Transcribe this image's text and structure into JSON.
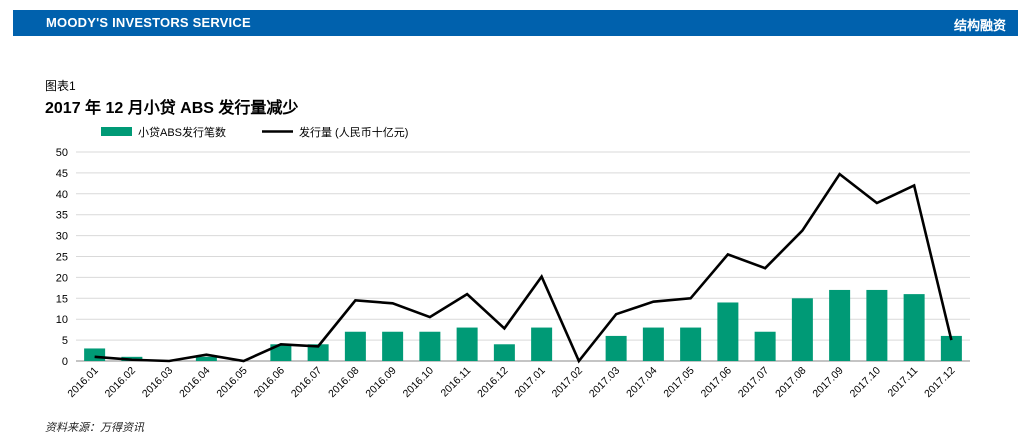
{
  "header": {
    "brand": "MOODY'S INVESTORS SERVICE",
    "section": "结构融资",
    "brand_color": "#0061ad"
  },
  "figure": {
    "label": "图表1",
    "title": "2017 年 12 月小贷 ABS 发行量减少",
    "source": "资料来源：万得资讯"
  },
  "chart_data": {
    "type": "bar",
    "title": "2017 年 12 月小贷 ABS 发行量减少",
    "categories": [
      "2016.01",
      "2016.02",
      "2016.03",
      "2016.04",
      "2016.05",
      "2016.06",
      "2016.07",
      "2016.08",
      "2016.09",
      "2016.10",
      "2016.11",
      "2016.12",
      "2017.01",
      "2017.02",
      "2017.03",
      "2017.04",
      "2017.05",
      "2017.06",
      "2017.07",
      "2017.08",
      "2017.09",
      "2017.10",
      "2017.11",
      "2017.12"
    ],
    "series": [
      {
        "name": "小贷ABS发行笔数",
        "kind": "bar",
        "color": "#009a76",
        "values": [
          3,
          1,
          0,
          1,
          0,
          4,
          4,
          7,
          7,
          7,
          8,
          4,
          8,
          0,
          6,
          8,
          8,
          14,
          7,
          15,
          17,
          17,
          16,
          6
        ]
      },
      {
        "name": "发行量 (人民币十亿元)",
        "kind": "line",
        "color": "#000000",
        "values": [
          1,
          0.3,
          0,
          1.5,
          0,
          4,
          3.5,
          14.5,
          13.8,
          10.5,
          16,
          7.8,
          20.2,
          0,
          11.2,
          14.2,
          15,
          25.5,
          22.2,
          31.2,
          44.7,
          37.8,
          42,
          5
        ]
      }
    ],
    "yticks": [
      0,
      5,
      10,
      15,
      20,
      25,
      30,
      35,
      40,
      45,
      50
    ],
    "ylim": [
      0,
      50
    ],
    "grid": true,
    "legend": "top-left"
  }
}
